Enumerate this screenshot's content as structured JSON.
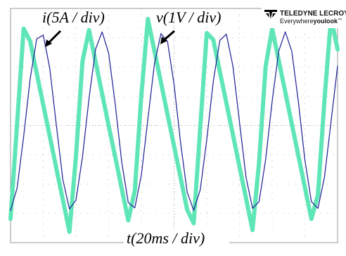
{
  "chart_data": {
    "type": "line",
    "xlabel": "t(20ms / div)",
    "x": [
      0,
      0.2,
      0.4,
      0.6,
      0.8,
      1,
      1.2,
      1.4,
      1.6,
      1.8,
      2,
      2.2,
      2.4,
      2.6,
      2.8,
      3,
      3.2,
      3.4,
      3.6,
      3.8,
      4,
      4.2,
      4.4,
      4.6,
      4.8,
      5,
      5.2,
      5.4,
      5.6,
      5.8,
      6,
      6.2,
      6.4,
      6.6,
      6.8,
      7,
      7.2,
      7.4,
      7.6,
      7.8,
      8,
      8.2,
      8.4,
      8.6,
      8.8,
      9,
      9.2,
      9.4,
      9.6,
      9.8,
      10
    ],
    "series": [
      {
        "name": "i(5A / div)",
        "color": "#5fe6b6",
        "values": [
          -3.19,
          0.06,
          3.31,
          2.88,
          1.79,
          0.71,
          -0.37,
          -1.46,
          -2.54,
          -3.63,
          -1.06,
          2.19,
          3.26,
          2.18,
          1.09,
          -0.01,
          -1.07,
          -2.16,
          -3.24,
          -2.22,
          1.03,
          3.64,
          2.55,
          1.47,
          0.38,
          -0.7,
          -1.78,
          -2.87,
          -3.34,
          -0.09,
          3.16,
          2.93,
          1.84,
          0.77,
          -0.31,
          -1.4,
          -2.48,
          -3.57,
          -1.25,
          2.01,
          3.31,
          2.23,
          1.15,
          0.06,
          -1.02,
          -2.11,
          -3.19,
          -2.37,
          0.88,
          3.69,
          2.6
        ]
      },
      {
        "name": "v(1V / div)",
        "color": "#2b2b9c",
        "values": [
          -2.9,
          -2.14,
          -0.38,
          1.6,
          2.96,
          3.09,
          1.95,
          0.02,
          -1.85,
          -2.85,
          -2.55,
          -1.07,
          0.93,
          2.61,
          3.2,
          2.47,
          0.74,
          -1.25,
          -2.63,
          -2.81,
          -1.69,
          0.22,
          2.11,
          3.14,
          2.87,
          1.41,
          -0.59,
          -2.27,
          -2.9,
          -2.2,
          -0.49,
          1.51,
          2.91,
          3.12,
          2.03,
          0.13,
          -1.76,
          -2.83,
          -2.6,
          -1.17,
          0.83,
          2.54,
          3.2,
          2.54,
          0.83,
          -1.17,
          -2.6,
          -2.83,
          -1.76,
          0.13,
          2.03
        ]
      }
    ],
    "xlim": [
      0,
      10
    ],
    "ylim": [
      -4,
      4
    ],
    "grid": true
  },
  "logo": {
    "name": "TELEDYNE LECROY",
    "tagline": "Everywhere",
    "tagline_bold": "youlook",
    "mark": "™"
  }
}
